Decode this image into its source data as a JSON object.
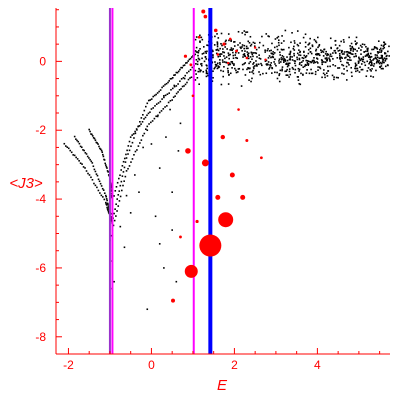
{
  "chart_data": {
    "type": "scatter",
    "xlabel": "E",
    "ylabel": "<J3>",
    "xlim": [
      -2.3,
      5.75
    ],
    "ylim": [
      -8.5,
      1.55
    ],
    "x_ticks": [
      -2,
      0,
      2,
      4
    ],
    "y_ticks": [
      -8,
      -6,
      -4,
      -2,
      0
    ],
    "x_tick_labels": [
      "-2",
      "0",
      "2",
      "4"
    ],
    "y_tick_labels": [
      "-8",
      "-6",
      "-4",
      "-2",
      "0"
    ],
    "grid": false,
    "colors": {
      "axis": "#ff0000",
      "black_points": "#000000",
      "red_points": "#ff0000",
      "purple_line": "#9933cc",
      "magenta_line": "#ff00ff",
      "blue_line": "#0000ff"
    },
    "vertical_lines": [
      {
        "x": -1.0,
        "color": "#9933cc"
      },
      {
        "x": -0.94,
        "color": "#ff00ff"
      },
      {
        "x": 1.02,
        "color": "#ff00ff"
      },
      {
        "x": 1.42,
        "color": "#0000ff"
      }
    ],
    "series": [
      {
        "style": "small black dots",
        "curves": [
          {
            "x": [
              -2.1,
              -1.6,
              -1.1,
              -0.95
            ],
            "y": [
              -2.4,
              -3.1,
              -4.1,
              -4.7
            ]
          },
          {
            "x": [
              -1.85,
              -1.45,
              -1.1,
              -0.95
            ],
            "y": [
              -2.2,
              -2.9,
              -3.9,
              -4.6
            ]
          },
          {
            "x": [
              -1.5,
              -1.2,
              -1.0,
              -0.95
            ],
            "y": [
              -2.0,
              -2.6,
              -3.4,
              -4.0
            ]
          },
          {
            "x": [
              -0.95,
              -0.6,
              -0.1,
              0.4,
              0.8,
              1.2
            ],
            "y": [
              -4.7,
              -2.8,
              -1.2,
              -0.6,
              -0.1,
              0.4
            ]
          },
          {
            "x": [
              -1.0,
              -0.6,
              -0.1,
              0.5,
              1.0
            ],
            "y": [
              -5.2,
              -3.2,
              -1.9,
              -1.1,
              -0.4
            ]
          },
          {
            "x": [
              -0.9,
              -0.5,
              0.0,
              0.6,
              1.2
            ],
            "y": [
              -3.9,
              -2.2,
              -1.4,
              -0.7,
              0.1
            ]
          }
        ],
        "scattered": [
          [
            -0.95,
            -5.8
          ],
          [
            -0.95,
            -6.6
          ],
          [
            -0.9,
            -6.4
          ],
          [
            -0.6,
            -3.9
          ],
          [
            -0.5,
            -4.4
          ],
          [
            -0.4,
            -3.3
          ],
          [
            -0.3,
            -3.8
          ],
          [
            -0.2,
            -2.5
          ],
          [
            -0.1,
            -2.0
          ],
          [
            0.0,
            -2.4
          ],
          [
            0.15,
            -1.6
          ],
          [
            0.2,
            -3.1
          ],
          [
            0.3,
            -1.0
          ],
          [
            0.35,
            -2.2
          ],
          [
            0.45,
            -1.4
          ],
          [
            0.5,
            -3.8
          ],
          [
            0.55,
            -0.7
          ],
          [
            0.65,
            -2.6
          ],
          [
            0.7,
            -1.8
          ],
          [
            0.8,
            -0.5
          ],
          [
            0.2,
            -5.3
          ],
          [
            0.5,
            -4.9
          ],
          [
            -0.1,
            -7.2
          ],
          [
            0.6,
            -6.4
          ],
          [
            0.3,
            -6.0
          ],
          [
            0.1,
            -4.5
          ],
          [
            -0.65,
            -5.4
          ],
          [
            -0.75,
            -4.8
          ]
        ],
        "cloud": {
          "x_range": [
            1.05,
            5.75
          ],
          "y_center": 0.1,
          "y_spread": 0.75,
          "count": 820
        }
      },
      {
        "style": "red dots, size ~ weight",
        "points": [
          {
            "x": 1.42,
            "y": -5.35,
            "r": 11
          },
          {
            "x": 1.79,
            "y": -4.6,
            "r": 7.5
          },
          {
            "x": 0.96,
            "y": -6.1,
            "r": 6.5
          },
          {
            "x": 1.3,
            "y": -2.95,
            "r": 3.5
          },
          {
            "x": 0.88,
            "y": -2.6,
            "r": 2.8
          },
          {
            "x": 1.6,
            "y": -3.95,
            "r": 2.5
          },
          {
            "x": 1.95,
            "y": -3.3,
            "r": 2.5
          },
          {
            "x": 2.2,
            "y": -3.95,
            "r": 2.5
          },
          {
            "x": 1.72,
            "y": -2.2,
            "r": 2.2
          },
          {
            "x": 0.52,
            "y": -6.95,
            "r": 2.0
          },
          {
            "x": 1.1,
            "y": -4.65,
            "r": 1.6
          },
          {
            "x": 0.7,
            "y": -5.1,
            "r": 1.4
          },
          {
            "x": 2.3,
            "y": -2.3,
            "r": 1.5
          },
          {
            "x": 2.65,
            "y": -2.8,
            "r": 1.4
          },
          {
            "x": 2.1,
            "y": -1.4,
            "r": 1.3
          },
          {
            "x": 1.0,
            "y": -1.0,
            "r": 1.3
          },
          {
            "x": 1.25,
            "y": 1.45,
            "r": 2.0
          },
          {
            "x": 1.3,
            "y": 1.3,
            "r": 1.8
          },
          {
            "x": 1.55,
            "y": 0.9,
            "r": 1.8
          },
          {
            "x": 1.75,
            "y": 0.5,
            "r": 1.6
          },
          {
            "x": 0.82,
            "y": 0.15,
            "r": 1.6
          },
          {
            "x": 0.95,
            "y": -0.1,
            "r": 1.4
          },
          {
            "x": 1.15,
            "y": 0.7,
            "r": 1.4
          },
          {
            "x": 2.05,
            "y": 0.3,
            "r": 1.4
          },
          {
            "x": 2.3,
            "y": 0.1,
            "r": 1.3
          },
          {
            "x": 1.9,
            "y": 0.65,
            "r": 1.3
          },
          {
            "x": 2.5,
            "y": 0.4,
            "r": 1.2
          },
          {
            "x": 1.6,
            "y": 0.2,
            "r": 1.3
          },
          {
            "x": 1.85,
            "y": -0.05,
            "r": 1.2
          },
          {
            "x": 2.75,
            "y": 0.05,
            "r": 1.2
          }
        ]
      }
    ]
  }
}
